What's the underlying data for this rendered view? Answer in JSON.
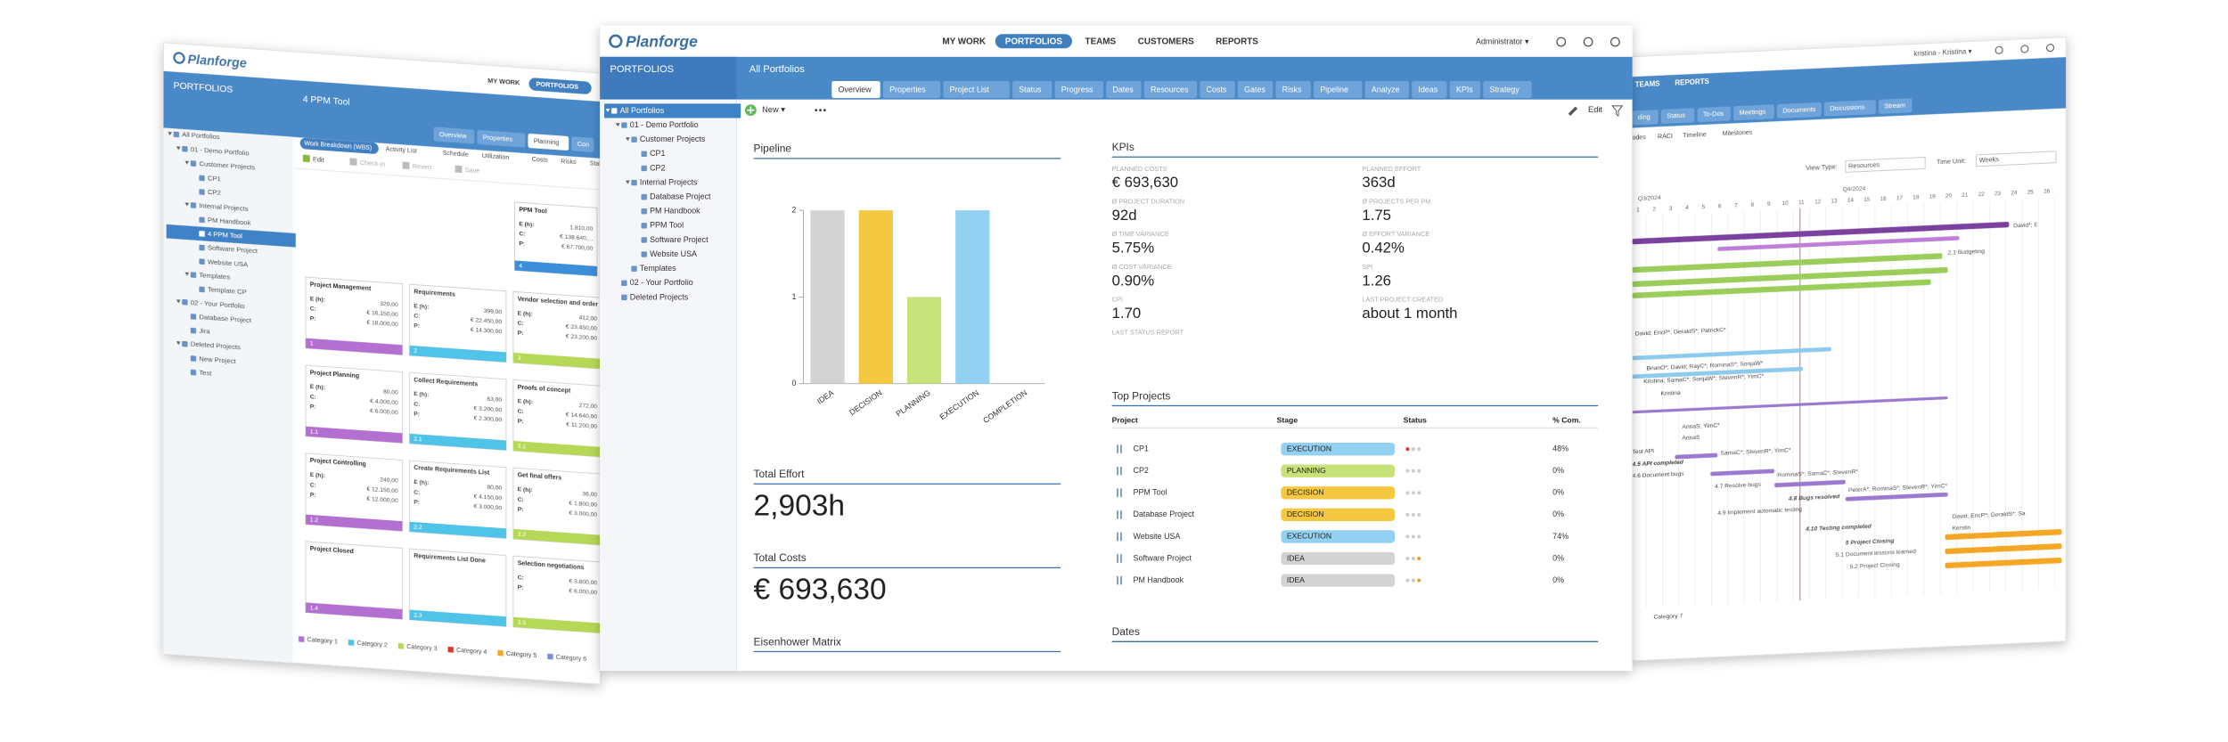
{
  "app": {
    "logo": "Planforge",
    "nav": [
      "MY WORK",
      "PORTFOLIOS",
      "TEAMS",
      "CUSTOMERS",
      "REPORTS"
    ],
    "active_nav": 1,
    "user": "Administrator ▾"
  },
  "sidebar": {
    "title": "PORTFOLIOS",
    "tree": [
      {
        "label": "All Portfolios",
        "selected": true,
        "children": [
          {
            "label": "01 - Demo Portfolio",
            "children": [
              {
                "label": "Customer Projects",
                "children": [
                  {
                    "label": "CP1"
                  },
                  {
                    "label": "CP2"
                  }
                ]
              },
              {
                "label": "Internal Projects",
                "children": [
                  {
                    "label": "Database Project"
                  },
                  {
                    "label": "PM Handbook"
                  },
                  {
                    "label": "PPM Tool"
                  },
                  {
                    "label": "Software Project"
                  },
                  {
                    "label": "Website USA"
                  }
                ]
              },
              {
                "label": "Templates"
              }
            ]
          },
          {
            "label": "02 - Your Portfolio"
          },
          {
            "label": "Deleted Projects"
          }
        ]
      }
    ]
  },
  "page": {
    "title": "All Portfolios",
    "tabs": [
      "Overview",
      "Properties",
      "Project List",
      "Status",
      "Progress",
      "Dates",
      "Resources",
      "Costs",
      "Gates",
      "Risks",
      "Pipeline",
      "Analyze",
      "Ideas",
      "KPIs",
      "Strategy"
    ],
    "active_tab": 0,
    "new_button": "New ▾",
    "edit_button": "Edit"
  },
  "chart_data": {
    "type": "bar",
    "title": "Pipeline",
    "categories": [
      "IDEA",
      "DECISION",
      "PLANNING",
      "EXECUTION",
      "COMPLETION"
    ],
    "values": [
      2,
      2,
      1,
      2,
      0
    ],
    "colors": [
      "#d3d3d3",
      "#f5c842",
      "#c8e27a",
      "#92d1f2",
      "#b9a3dc"
    ],
    "ylim": [
      0,
      2
    ],
    "yticks": [
      0,
      1,
      2
    ]
  },
  "effort": {
    "title": "Total Effort",
    "value": "2,903h"
  },
  "costs": {
    "title": "Total Costs",
    "value": "€ 693,630"
  },
  "eisenhower": {
    "title": "Eisenhower Matrix"
  },
  "kpis": {
    "title": "KPIs",
    "items": [
      {
        "label": "PLANNED COSTS",
        "value": "€ 693,630"
      },
      {
        "label": "PLANNED EFFORT",
        "value": "363d"
      },
      {
        "label": "Ø PROJECT DURATION",
        "value": "92d"
      },
      {
        "label": "Ø PROJECTS PER PM",
        "value": "1.75"
      },
      {
        "label": "Ø TIME VARIANCE",
        "value": "5.75%"
      },
      {
        "label": "Ø EFFORT VARIANCE",
        "value": "0.42%"
      },
      {
        "label": "Ø COST VARIANCE",
        "value": "0.90%"
      },
      {
        "label": "SPI",
        "value": "1.26"
      },
      {
        "label": "CPI",
        "value": "1.70"
      },
      {
        "label": "LAST PROJECT CREATED",
        "value": "about 1 month"
      },
      {
        "label": "LAST STATUS REPORT"
      }
    ]
  },
  "top_projects": {
    "title": "Top Projects",
    "columns": [
      "Project",
      "Stage",
      "Status",
      "% Com."
    ],
    "stage_colors": {
      "EXECUTION": "#92d1f2",
      "PLANNING": "#c8e27a",
      "DECISION": "#f5c842",
      "IDEA": "#d3d3d3"
    },
    "rows": [
      {
        "project": "CP1",
        "stage": "EXECUTION",
        "status": [
          "#e03a3a",
          "#cccccc",
          "#cccccc"
        ],
        "percent": "48%"
      },
      {
        "project": "CP2",
        "stage": "PLANNING",
        "status": [
          "#cccccc",
          "#cccccc",
          "#cccccc"
        ],
        "percent": "0%"
      },
      {
        "project": "PPM Tool",
        "stage": "DECISION",
        "status": [
          "#cccccc",
          "#cccccc",
          "#cccccc"
        ],
        "percent": "0%"
      },
      {
        "project": "Database Project",
        "stage": "DECISION",
        "status": [
          "#cccccc",
          "#cccccc",
          "#cccccc"
        ],
        "percent": "0%"
      },
      {
        "project": "Website USA",
        "stage": "EXECUTION",
        "status": [
          "#cccccc",
          "#cccccc",
          "#cccccc"
        ],
        "percent": "74%"
      },
      {
        "project": "Software Project",
        "stage": "IDEA",
        "status": [
          "#cccccc",
          "#cccccc",
          "#e8a020"
        ],
        "percent": "0%"
      },
      {
        "project": "PM Handbook",
        "stage": "IDEA",
        "status": [
          "#cccccc",
          "#cccccc",
          "#e8a020"
        ],
        "percent": "0%"
      }
    ]
  },
  "dates": {
    "title": "Dates"
  },
  "left_panel": {
    "logo": "Planforge",
    "nav": [
      "MY WORK",
      "PORTFOLIOS"
    ],
    "sidebar_title": "PORTFOLIOS",
    "title": "4 PPM Tool",
    "tabs": [
      "Overview",
      "Properties",
      "Planning",
      "Con"
    ],
    "active_tab": 2,
    "subtabs": [
      "Work Breakdown (WBS)",
      "Activity List",
      "Schedule",
      "Utilization",
      "Costs",
      "Risks",
      "Stakeh"
    ],
    "toolbar": [
      "Edit",
      "Check-in",
      "Revert",
      "Save"
    ],
    "tree": [
      {
        "label": "All Portfolios",
        "children": [
          {
            "label": "01 - Demo Portfolio",
            "children": [
              {
                "label": "Customer Projects",
                "children": [
                  {
                    "label": "CP1"
                  },
                  {
                    "label": "CP2"
                  }
                ]
              },
              {
                "label": "Internal Projects",
                "children": [
                  {
                    "label": "PM Handbook"
                  },
                  {
                    "label": "4 PPM Tool",
                    "selected": true
                  },
                  {
                    "label": "Software Project"
                  },
                  {
                    "label": "Website USA"
                  }
                ]
              },
              {
                "label": "Templates",
                "children": [
                  {
                    "label": "Template CP"
                  }
                ]
              }
            ]
          },
          {
            "label": "02 - Your Portfolio",
            "children": [
              {
                "label": "Database Project"
              },
              {
                "label": "Jira"
              }
            ]
          },
          {
            "label": "Deleted Projects",
            "children": [
              {
                "label": "New Project"
              },
              {
                "label": "Test"
              }
            ]
          }
        ]
      }
    ],
    "wbs": {
      "field_labels": [
        "E (h):",
        "C:",
        "P:"
      ],
      "cards": [
        {
          "title": "PPM Tool",
          "e": "1.810,00",
          "c": "€ 138.640,...",
          "p": "€ 67.700,00",
          "code": "4",
          "color": "#3a8fd8"
        },
        {
          "title": "Project Management",
          "e": "320,00",
          "c": "€ 16.150,00",
          "p": "€ 18.000,00",
          "code": "1",
          "color": "#b46fd0"
        },
        {
          "title": "Requirements",
          "e": "399,00",
          "c": "€ 22.450,00",
          "p": "€ 14.300,00",
          "code": "2",
          "color": "#4fc3e8"
        },
        {
          "title": "Vendor selection and order",
          "e": "412,00",
          "c": "€ 23.450,00",
          "p": "€ 23.200,00",
          "code": "3",
          "color": "#b5d957"
        },
        {
          "title": "Project Planning",
          "e": "80,00",
          "c": "€ 4.000,00",
          "p": "€ 6.000,00",
          "code": "1.1",
          "color": "#b46fd0"
        },
        {
          "title": "Collect Requirements",
          "e": "63,00",
          "c": "€ 3.200,00",
          "p": "€ 2.300,00",
          "code": "2.1",
          "color": "#4fc3e8"
        },
        {
          "title": "Proofs of concept",
          "e": "272,00",
          "c": "€ 14.640,00",
          "p": "€ 11.200,00",
          "code": "3.1",
          "color": "#b5d957"
        },
        {
          "title": "Project Controlling",
          "e": "240,00",
          "c": "€ 12.150,00",
          "p": "€ 12.000,00",
          "code": "1.2",
          "color": "#b46fd0"
        },
        {
          "title": "Create Requirements List",
          "e": "80,00",
          "c": "€ 4.150,00",
          "p": "€ 3.000,00",
          "code": "2.2",
          "color": "#4fc3e8"
        },
        {
          "title": "Get final offers",
          "e": "36,00",
          "c": "€ 1.800,00",
          "p": "€ 3.000,00",
          "code": "3.2",
          "color": "#b5d957"
        },
        {
          "title": "Project Closed",
          "code": "1.4",
          "color": "#b46fd0"
        },
        {
          "title": "Requirements List Done",
          "code": "2.3",
          "color": "#4fc3e8"
        },
        {
          "title": "Selection negotiations",
          "c": "€ 3.800,00",
          "p": "€ 6.000,00",
          "code": "3.3",
          "color": "#b5d957"
        }
      ]
    },
    "legend": [
      {
        "name": "Category 1",
        "color": "#b46fd0"
      },
      {
        "name": "Category 2",
        "color": "#4fc3e8"
      },
      {
        "name": "Category 3",
        "color": "#b5d957"
      },
      {
        "name": "Category 4",
        "color": "#d9342b"
      },
      {
        "name": "Category 5",
        "color": "#f5a623"
      },
      {
        "name": "Category 6",
        "color": "#7a8fd8"
      }
    ]
  },
  "right_panel": {
    "user": "kristina - Kristina ▾",
    "nav": [
      "TEAMS",
      "REPORTS"
    ],
    "tabs": [
      "ding",
      "Status",
      "To-Dos",
      "Meetings",
      "Documents",
      "Discussions",
      "Stream"
    ],
    "subtabs": [
      "odes",
      "RACI",
      "Timeline",
      "Milestones"
    ],
    "view_type_label": "View Type:",
    "view_type": "Resources",
    "time_unit_label": "Time Unit:",
    "time_unit": "Weeks",
    "quarters": [
      "Q3/2024",
      "Q4/2024"
    ],
    "weeks": [
      1,
      2,
      3,
      4,
      5,
      6,
      7,
      8,
      9,
      10,
      11,
      12,
      13,
      14,
      15,
      16,
      17,
      18,
      19,
      20,
      21,
      22,
      23,
      24,
      25,
      26
    ],
    "gantt_labels": [
      "David*; E",
      "2.1 Budgeting",
      "David; EricP*; GeraldS*; PatrickC*",
      "BrianO*; David; RayC*; RominaS*; SonjaW*",
      "Kristina; SamaC*; SonjaW*; StevenR*; YimC*",
      "Kristina",
      "AnnaS; YimC*",
      "AnnaS",
      "Test API",
      "4.5 API completed",
      "4.6 Document bugs",
      "SamaC*; StevenR*; YimC*",
      "4.7 Resolve bugs",
      "RominaS*; SamaC*; StevenR*",
      "4.8 Bugs resolved",
      "PeterA*; RominaS*; StevenR*; YimC*",
      "4.9 Implement automatic testing",
      "4.10 Testing completed",
      "David; EricP*; GeraldS*; Sa",
      "Kerstin",
      "5 Project Closing",
      "5.1 Document lessons learned",
      "5.2 Project Closing",
      "Category 7"
    ]
  }
}
